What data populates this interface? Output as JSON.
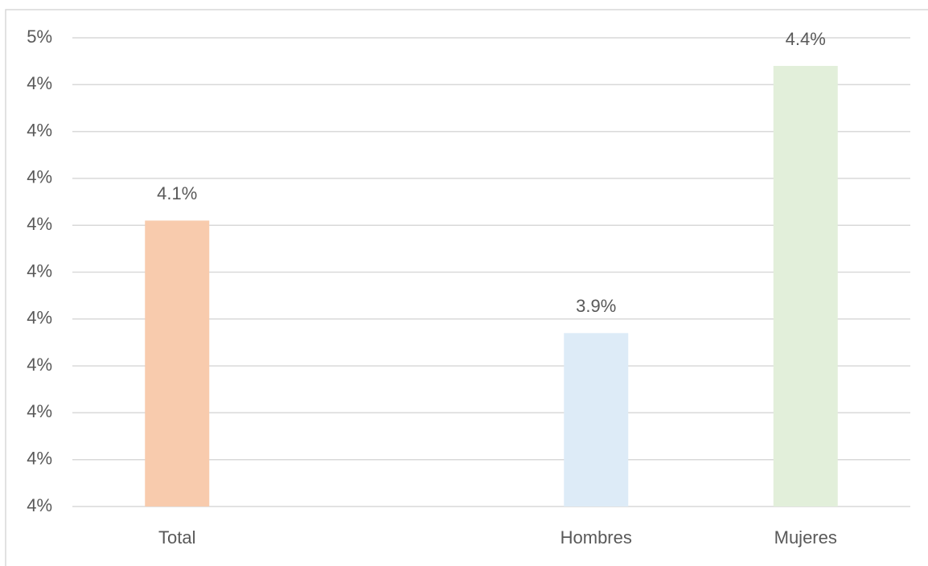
{
  "chart_data": {
    "type": "bar",
    "categories": [
      "Total",
      null,
      "Hombres",
      "Mujeres"
    ],
    "values": [
      4.11,
      null,
      3.87,
      4.44
    ],
    "value_labels": [
      "4.1%",
      null,
      "3.9%",
      "4.4%"
    ],
    "colors": [
      "#f8cbad",
      null,
      "#ddebf7",
      "#e2efda"
    ],
    "ylim": [
      3.5,
      4.5
    ],
    "yticks": [
      {
        "value": 3.5,
        "label": "4%"
      },
      {
        "value": 3.6,
        "label": "4%"
      },
      {
        "value": 3.7,
        "label": "4%"
      },
      {
        "value": 3.8,
        "label": "4%"
      },
      {
        "value": 3.9,
        "label": "4%"
      },
      {
        "value": 4.0,
        "label": "4%"
      },
      {
        "value": 4.1,
        "label": "4%"
      },
      {
        "value": 4.2,
        "label": "4%"
      },
      {
        "value": 4.3,
        "label": "4%"
      },
      {
        "value": 4.4,
        "label": "4%"
      },
      {
        "value": 4.5,
        "label": "5%"
      }
    ],
    "grid": true
  }
}
